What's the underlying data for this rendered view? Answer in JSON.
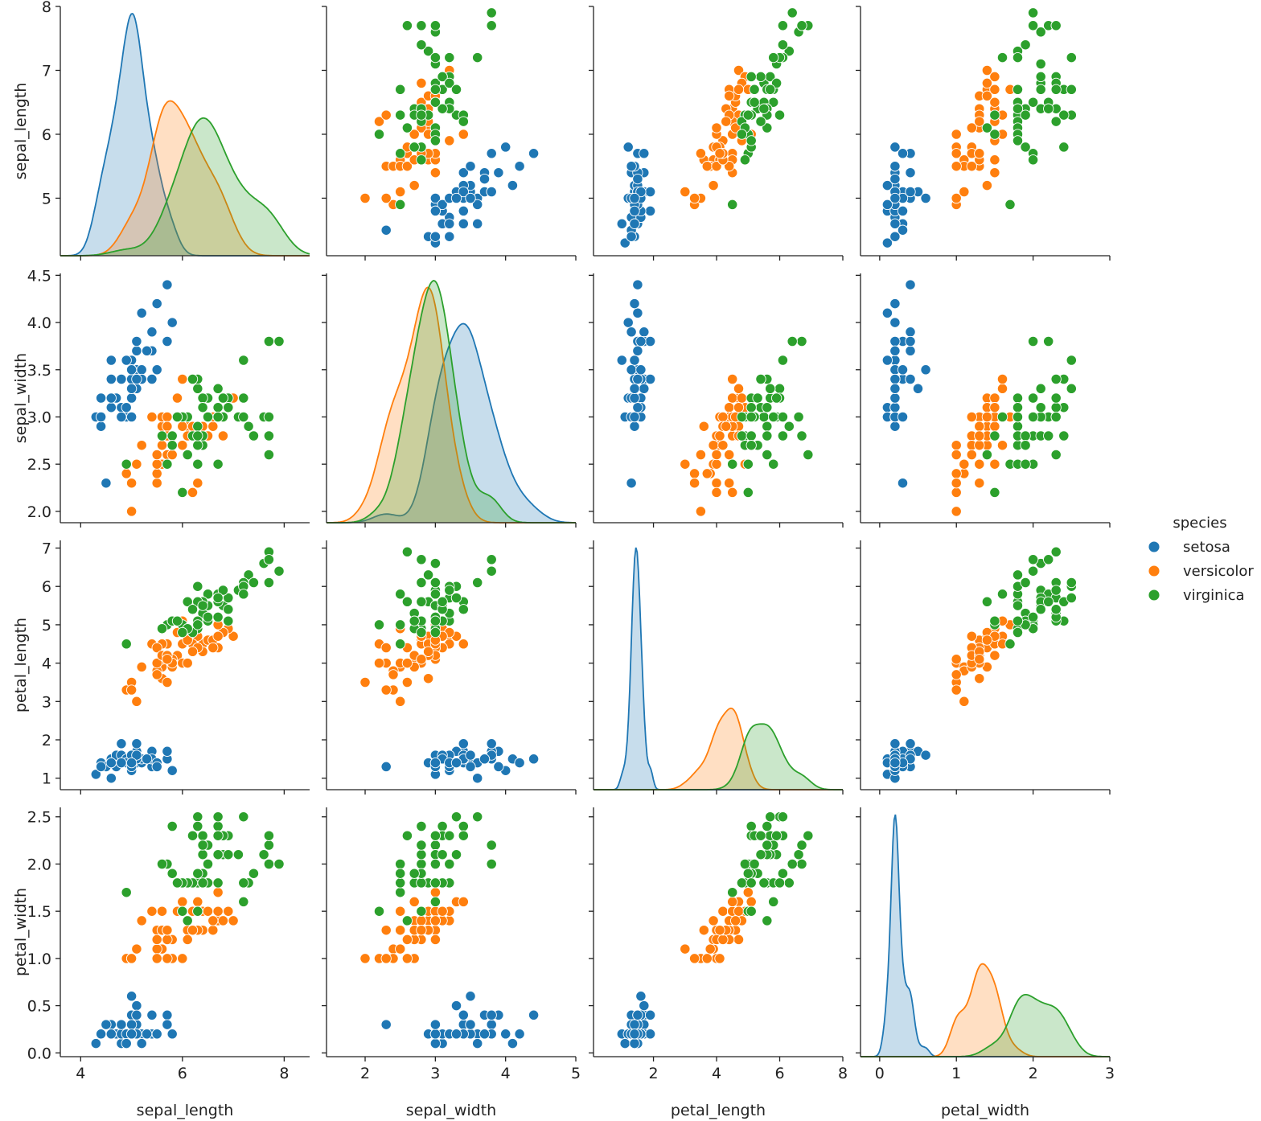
{
  "chart_data": {
    "type": "scatter",
    "variables": [
      "sepal_length",
      "sepal_width",
      "petal_length",
      "petal_width"
    ],
    "axes": {
      "sepal_length": {
        "lim": [
          3.6,
          8.5
        ],
        "ticks": [
          4,
          6,
          8
        ],
        "yticks": [
          5,
          6,
          7,
          8
        ],
        "ylim": [
          4.1,
          8.0
        ]
      },
      "sepal_width": {
        "lim": [
          1.45,
          5.0
        ],
        "ticks": [
          2,
          3,
          4,
          5
        ],
        "yticks": [
          2.0,
          2.5,
          3.0,
          3.5,
          4.0,
          4.5
        ],
        "ytick_labels": [
          "2.0",
          "2.5",
          "3.0",
          "3.5",
          "4.0",
          "4.5"
        ],
        "ylim": [
          1.88,
          4.52
        ]
      },
      "petal_length": {
        "lim": [
          0.1,
          8.0
        ],
        "ticks": [
          2,
          4,
          6,
          8
        ],
        "yticks": [
          1,
          2,
          3,
          4,
          5,
          6,
          7
        ],
        "ylim": [
          0.7,
          7.2
        ]
      },
      "petal_width": {
        "lim": [
          -0.25,
          3.0
        ],
        "ticks": [
          0,
          1,
          2,
          3
        ],
        "yticks": [
          0.0,
          0.5,
          1.0,
          1.5,
          2.0,
          2.5
        ],
        "ytick_labels": [
          "0.0",
          "0.5",
          "1.0",
          "1.5",
          "2.0",
          "2.5"
        ],
        "ylim": [
          -0.04,
          2.6
        ]
      }
    },
    "legend": {
      "title": "species",
      "placement": "center-right",
      "entries": [
        {
          "name": "setosa",
          "color": "#1f77b4"
        },
        {
          "name": "versicolor",
          "color": "#ff7f0e"
        },
        {
          "name": "virginica",
          "color": "#2ca02c"
        }
      ]
    },
    "diagonal": "kde",
    "grid": false,
    "series": [
      {
        "name": "setosa",
        "color": "#1f77b4",
        "points": [
          [
            5.1,
            3.5,
            1.4,
            0.2
          ],
          [
            4.9,
            3.0,
            1.4,
            0.2
          ],
          [
            4.7,
            3.2,
            1.3,
            0.2
          ],
          [
            4.6,
            3.1,
            1.5,
            0.2
          ],
          [
            5.0,
            3.6,
            1.4,
            0.2
          ],
          [
            5.4,
            3.9,
            1.7,
            0.4
          ],
          [
            4.6,
            3.4,
            1.4,
            0.3
          ],
          [
            5.0,
            3.4,
            1.5,
            0.2
          ],
          [
            4.4,
            2.9,
            1.4,
            0.2
          ],
          [
            4.9,
            3.1,
            1.5,
            0.1
          ],
          [
            5.4,
            3.7,
            1.5,
            0.2
          ],
          [
            4.8,
            3.4,
            1.6,
            0.2
          ],
          [
            4.8,
            3.0,
            1.4,
            0.1
          ],
          [
            4.3,
            3.0,
            1.1,
            0.1
          ],
          [
            5.8,
            4.0,
            1.2,
            0.2
          ],
          [
            5.7,
            4.4,
            1.5,
            0.4
          ],
          [
            5.4,
            3.9,
            1.3,
            0.4
          ],
          [
            5.1,
            3.5,
            1.4,
            0.3
          ],
          [
            5.7,
            3.8,
            1.7,
            0.3
          ],
          [
            5.1,
            3.8,
            1.5,
            0.3
          ],
          [
            5.4,
            3.4,
            1.7,
            0.2
          ],
          [
            5.1,
            3.7,
            1.5,
            0.4
          ],
          [
            4.6,
            3.6,
            1.0,
            0.2
          ],
          [
            5.1,
            3.3,
            1.7,
            0.5
          ],
          [
            4.8,
            3.4,
            1.9,
            0.2
          ],
          [
            5.0,
            3.0,
            1.6,
            0.2
          ],
          [
            5.0,
            3.4,
            1.6,
            0.4
          ],
          [
            5.2,
            3.5,
            1.5,
            0.2
          ],
          [
            5.2,
            3.4,
            1.4,
            0.2
          ],
          [
            4.7,
            3.2,
            1.6,
            0.2
          ],
          [
            4.8,
            3.1,
            1.6,
            0.2
          ],
          [
            5.4,
            3.4,
            1.5,
            0.4
          ],
          [
            5.2,
            4.1,
            1.5,
            0.1
          ],
          [
            5.5,
            4.2,
            1.4,
            0.2
          ],
          [
            4.9,
            3.1,
            1.5,
            0.2
          ],
          [
            5.0,
            3.2,
            1.2,
            0.2
          ],
          [
            5.5,
            3.5,
            1.3,
            0.2
          ],
          [
            4.9,
            3.6,
            1.4,
            0.1
          ],
          [
            4.4,
            3.0,
            1.3,
            0.2
          ],
          [
            5.1,
            3.4,
            1.5,
            0.2
          ],
          [
            5.0,
            3.5,
            1.3,
            0.3
          ],
          [
            4.5,
            2.3,
            1.3,
            0.3
          ],
          [
            4.4,
            3.2,
            1.3,
            0.2
          ],
          [
            5.0,
            3.5,
            1.6,
            0.6
          ],
          [
            5.1,
            3.8,
            1.9,
            0.4
          ],
          [
            4.8,
            3.0,
            1.4,
            0.3
          ],
          [
            5.1,
            3.8,
            1.6,
            0.2
          ],
          [
            4.6,
            3.2,
            1.4,
            0.2
          ],
          [
            5.3,
            3.7,
            1.5,
            0.2
          ],
          [
            5.0,
            3.3,
            1.4,
            0.2
          ]
        ]
      },
      {
        "name": "versicolor",
        "color": "#ff7f0e",
        "points": [
          [
            7.0,
            3.2,
            4.7,
            1.4
          ],
          [
            6.4,
            3.2,
            4.5,
            1.5
          ],
          [
            6.9,
            3.1,
            4.9,
            1.5
          ],
          [
            5.5,
            2.3,
            4.0,
            1.3
          ],
          [
            6.5,
            2.8,
            4.6,
            1.5
          ],
          [
            5.7,
            2.8,
            4.5,
            1.3
          ],
          [
            6.3,
            3.3,
            4.7,
            1.6
          ],
          [
            4.9,
            2.4,
            3.3,
            1.0
          ],
          [
            6.6,
            2.9,
            4.6,
            1.3
          ],
          [
            5.2,
            2.7,
            3.9,
            1.4
          ],
          [
            5.0,
            2.0,
            3.5,
            1.0
          ],
          [
            5.9,
            3.0,
            4.2,
            1.5
          ],
          [
            6.0,
            2.2,
            4.0,
            1.0
          ],
          [
            6.1,
            2.9,
            4.7,
            1.4
          ],
          [
            5.6,
            2.9,
            3.6,
            1.3
          ],
          [
            6.7,
            3.1,
            4.4,
            1.4
          ],
          [
            5.6,
            3.0,
            4.5,
            1.5
          ],
          [
            5.8,
            2.7,
            4.1,
            1.0
          ],
          [
            6.2,
            2.2,
            4.5,
            1.5
          ],
          [
            5.6,
            2.5,
            3.9,
            1.1
          ],
          [
            5.9,
            3.2,
            4.8,
            1.8
          ],
          [
            6.1,
            2.8,
            4.0,
            1.3
          ],
          [
            6.3,
            2.5,
            4.9,
            1.5
          ],
          [
            6.1,
            2.8,
            4.7,
            1.2
          ],
          [
            6.4,
            2.9,
            4.3,
            1.3
          ],
          [
            6.6,
            3.0,
            4.4,
            1.4
          ],
          [
            6.8,
            2.8,
            4.8,
            1.4
          ],
          [
            6.7,
            3.0,
            5.0,
            1.7
          ],
          [
            6.0,
            2.9,
            4.5,
            1.5
          ],
          [
            5.7,
            2.6,
            3.5,
            1.0
          ],
          [
            5.5,
            2.4,
            3.8,
            1.1
          ],
          [
            5.5,
            2.4,
            3.7,
            1.0
          ],
          [
            5.8,
            2.7,
            3.9,
            1.2
          ],
          [
            6.0,
            2.7,
            5.1,
            1.6
          ],
          [
            5.4,
            3.0,
            4.5,
            1.5
          ],
          [
            6.0,
            3.4,
            4.5,
            1.6
          ],
          [
            6.7,
            3.1,
            4.7,
            1.5
          ],
          [
            6.3,
            2.3,
            4.4,
            1.3
          ],
          [
            5.6,
            3.0,
            4.1,
            1.3
          ],
          [
            5.5,
            2.5,
            4.0,
            1.3
          ],
          [
            5.5,
            2.6,
            4.4,
            1.2
          ],
          [
            6.1,
            3.0,
            4.6,
            1.4
          ],
          [
            5.8,
            2.6,
            4.0,
            1.2
          ],
          [
            5.0,
            2.3,
            3.3,
            1.0
          ],
          [
            5.6,
            2.7,
            4.2,
            1.3
          ],
          [
            5.7,
            3.0,
            4.2,
            1.2
          ],
          [
            5.7,
            2.9,
            4.2,
            1.3
          ],
          [
            6.2,
            2.9,
            4.3,
            1.3
          ],
          [
            5.1,
            2.5,
            3.0,
            1.1
          ],
          [
            5.7,
            2.8,
            4.1,
            1.3
          ]
        ]
      },
      {
        "name": "virginica",
        "color": "#2ca02c",
        "points": [
          [
            6.3,
            3.3,
            6.0,
            2.5
          ],
          [
            5.8,
            2.7,
            5.1,
            1.9
          ],
          [
            7.1,
            3.0,
            5.9,
            2.1
          ],
          [
            6.3,
            2.9,
            5.6,
            1.8
          ],
          [
            6.5,
            3.0,
            5.8,
            2.2
          ],
          [
            7.6,
            3.0,
            6.6,
            2.1
          ],
          [
            4.9,
            2.5,
            4.5,
            1.7
          ],
          [
            7.3,
            2.9,
            6.3,
            1.8
          ],
          [
            6.7,
            2.5,
            5.8,
            1.8
          ],
          [
            7.2,
            3.6,
            6.1,
            2.5
          ],
          [
            6.5,
            3.2,
            5.1,
            2.0
          ],
          [
            6.4,
            2.7,
            5.3,
            1.9
          ],
          [
            6.8,
            3.0,
            5.5,
            2.1
          ],
          [
            5.7,
            2.5,
            5.0,
            2.0
          ],
          [
            5.8,
            2.8,
            5.1,
            2.4
          ],
          [
            6.4,
            3.2,
            5.3,
            2.3
          ],
          [
            6.5,
            3.0,
            5.5,
            1.8
          ],
          [
            7.7,
            3.8,
            6.7,
            2.2
          ],
          [
            7.7,
            2.6,
            6.9,
            2.3
          ],
          [
            6.0,
            2.2,
            5.0,
            1.5
          ],
          [
            6.9,
            3.2,
            5.7,
            2.3
          ],
          [
            5.6,
            2.8,
            4.9,
            2.0
          ],
          [
            7.7,
            2.8,
            6.7,
            2.0
          ],
          [
            6.3,
            2.7,
            4.9,
            1.8
          ],
          [
            6.7,
            3.3,
            5.7,
            2.1
          ],
          [
            7.2,
            3.2,
            6.0,
            1.8
          ],
          [
            6.2,
            2.8,
            4.8,
            1.8
          ],
          [
            6.1,
            3.0,
            4.9,
            1.8
          ],
          [
            6.4,
            2.8,
            5.6,
            2.1
          ],
          [
            7.2,
            3.0,
            5.8,
            1.6
          ],
          [
            7.4,
            2.8,
            6.1,
            1.9
          ],
          [
            7.9,
            3.8,
            6.4,
            2.0
          ],
          [
            6.4,
            2.8,
            5.6,
            2.2
          ],
          [
            6.3,
            2.8,
            5.1,
            1.5
          ],
          [
            6.1,
            2.6,
            5.6,
            1.4
          ],
          [
            7.7,
            3.0,
            6.1,
            2.3
          ],
          [
            6.3,
            3.4,
            5.6,
            2.4
          ],
          [
            6.4,
            3.1,
            5.5,
            1.8
          ],
          [
            6.0,
            3.0,
            4.8,
            1.8
          ],
          [
            6.9,
            3.1,
            5.4,
            2.1
          ],
          [
            6.7,
            3.1,
            5.6,
            2.4
          ],
          [
            6.9,
            3.1,
            5.1,
            2.3
          ],
          [
            5.8,
            2.7,
            5.1,
            1.9
          ],
          [
            6.8,
            3.2,
            5.9,
            2.3
          ],
          [
            6.7,
            3.3,
            5.7,
            2.5
          ],
          [
            6.7,
            3.0,
            5.2,
            2.3
          ],
          [
            6.3,
            2.5,
            5.0,
            1.9
          ],
          [
            6.5,
            3.0,
            5.2,
            2.0
          ],
          [
            6.2,
            3.4,
            5.4,
            2.3
          ],
          [
            5.9,
            3.0,
            5.1,
            1.8
          ]
        ]
      }
    ]
  }
}
